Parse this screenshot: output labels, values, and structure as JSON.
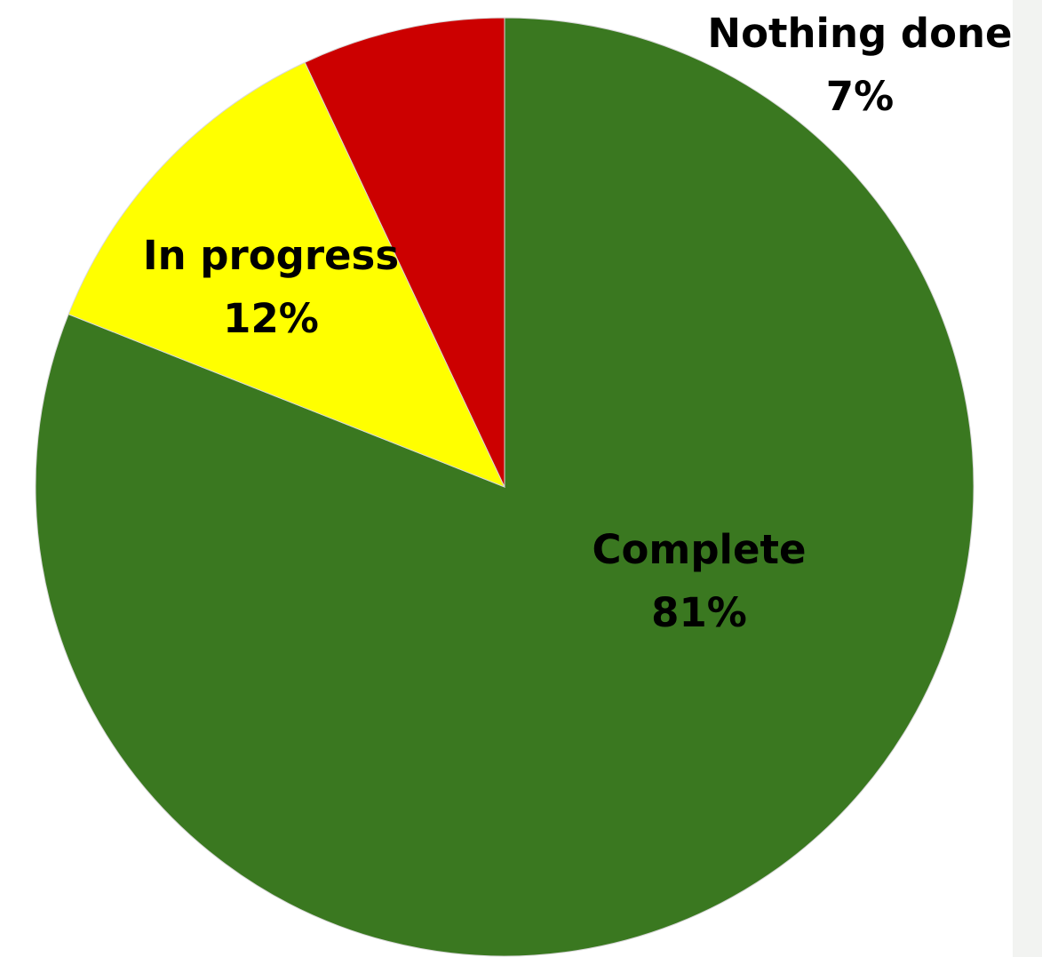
{
  "chart_data": {
    "type": "pie",
    "title": "",
    "start_angle_degrees": 0,
    "direction": "clockwise",
    "slices": [
      {
        "label": "Complete",
        "value": 81,
        "value_label": "81%",
        "color": "#3a7820"
      },
      {
        "label": "In progress",
        "value": 12,
        "value_label": "12%",
        "color": "#ffff00"
      },
      {
        "label": "Nothing done",
        "value": 7,
        "value_label": "7%",
        "color": "#cc0000"
      }
    ]
  },
  "colors": {
    "background": "#ffffff",
    "side_strip": "#f2f3f1",
    "label_text": "#000000",
    "slice_border": "#d8d8d8"
  }
}
